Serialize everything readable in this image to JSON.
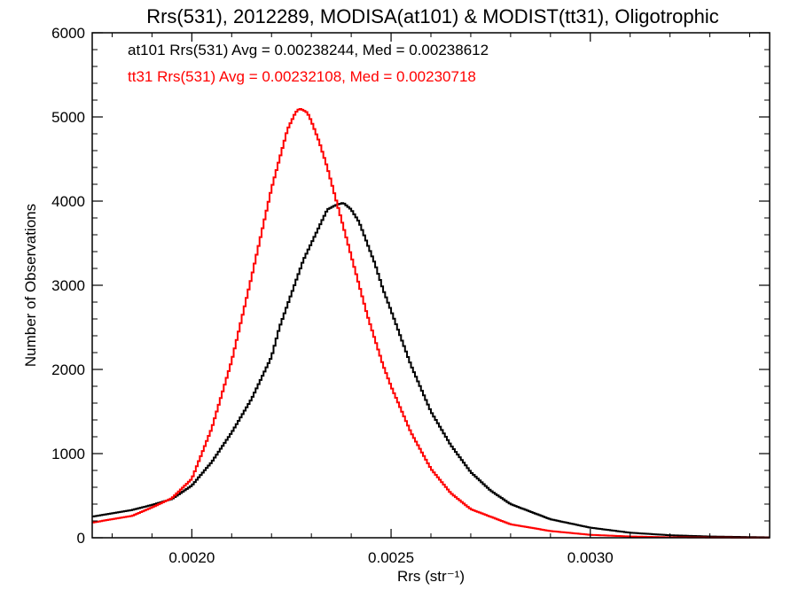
{
  "chart_data": {
    "type": "line",
    "step": true,
    "title": "Rrs(531), 2012289, MODISA(at101) & MODIST(tt31), Oligotrophic",
    "xlabel": "Rrs (str⁻¹)",
    "ylabel": "Number of Observations",
    "xlim": [
      0.00175,
      0.00345
    ],
    "ylim": [
      0,
      6000
    ],
    "xticks": [
      0.002,
      0.0025,
      0.003
    ],
    "xtick_labels": [
      "0.0020",
      "0.0025",
      "0.0030"
    ],
    "yticks": [
      0,
      1000,
      2000,
      3000,
      4000,
      5000,
      6000
    ],
    "ytick_labels": [
      "0",
      "1000",
      "2000",
      "3000",
      "4000",
      "5000",
      "6000"
    ],
    "grid": false,
    "legend_position": "top-left",
    "legend": [
      "at101 Rrs(531) Avg = 0.00238244, Med = 0.00238612",
      "tt31 Rrs(531) Avg = 0.00232108, Med = 0.00230718"
    ],
    "series": [
      {
        "color": "#000000",
        "x": [
          0.00175,
          0.00185,
          0.0019,
          0.00195,
          0.002,
          0.00205,
          0.0021,
          0.00215,
          0.0022,
          0.00222,
          0.00225,
          0.00228,
          0.0023,
          0.00232,
          0.00234,
          0.00236,
          0.00238,
          0.0024,
          0.00242,
          0.00244,
          0.00246,
          0.00248,
          0.0025,
          0.00255,
          0.0026,
          0.00265,
          0.0027,
          0.00275,
          0.0028,
          0.0029,
          0.003,
          0.0031,
          0.0032,
          0.0033,
          0.0034,
          0.00345
        ],
        "y": [
          250,
          330,
          390,
          460,
          620,
          900,
          1250,
          1650,
          2150,
          2500,
          2900,
          3300,
          3500,
          3700,
          3900,
          3950,
          3980,
          3900,
          3750,
          3500,
          3250,
          2950,
          2700,
          2050,
          1500,
          1100,
          780,
          560,
          400,
          220,
          120,
          60,
          30,
          15,
          8,
          5
        ]
      },
      {
        "color": "#ff0000",
        "x": [
          0.00175,
          0.00185,
          0.0019,
          0.00195,
          0.002,
          0.00205,
          0.0021,
          0.00215,
          0.0022,
          0.00222,
          0.00224,
          0.00226,
          0.00227,
          0.00228,
          0.00229,
          0.0023,
          0.00232,
          0.00234,
          0.00236,
          0.00238,
          0.0024,
          0.00242,
          0.00244,
          0.00246,
          0.00248,
          0.0025,
          0.00255,
          0.0026,
          0.00265,
          0.0027,
          0.0028,
          0.0029,
          0.003,
          0.0031,
          0.0032,
          0.0033,
          0.0034,
          0.00345
        ],
        "y": [
          180,
          260,
          360,
          470,
          700,
          1300,
          2100,
          3100,
          4150,
          4500,
          4850,
          5050,
          5100,
          5080,
          5050,
          4950,
          4700,
          4400,
          4050,
          3700,
          3350,
          3000,
          2650,
          2350,
          2050,
          1800,
          1250,
          820,
          530,
          340,
          160,
          80,
          35,
          15,
          6,
          3,
          1,
          1
        ]
      }
    ]
  }
}
